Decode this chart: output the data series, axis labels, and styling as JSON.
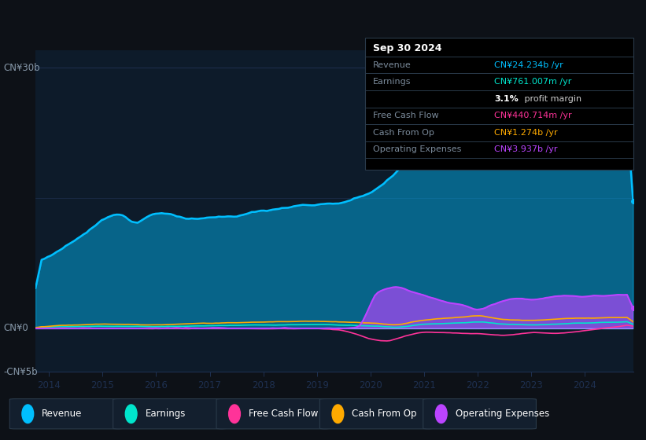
{
  "bg_color": "#0d1117",
  "plot_bg_color": "#0d1b2a",
  "ylim": [
    -5000000000.0,
    32000000000.0
  ],
  "colors": {
    "revenue": "#00bfff",
    "earnings": "#00e5cc",
    "free_cash_flow": "#ff3399",
    "cash_from_op": "#ffaa00",
    "operating_expenses": "#bb44ff"
  },
  "grid_color": "#1e3050",
  "zero_line_color": "#ffffff",
  "info_box_bg": "#000000",
  "info_box_border": "#2a3a4a",
  "info_box_title": "Sep 30 2024",
  "info_box_title_color": "#ffffff",
  "info_box_label_color": "#7a8a9a",
  "info_box_rows": [
    {
      "label": "Revenue",
      "value": "CN¥24.234b /yr",
      "color": "#00bfff"
    },
    {
      "label": "Earnings",
      "value": "CN¥761.007m /yr",
      "color": "#00e5cc"
    },
    {
      "label": "",
      "value_bold": "3.1%",
      "value_rest": " profit margin",
      "color": "#ffffff"
    },
    {
      "label": "Free Cash Flow",
      "value": "CN¥440.714m /yr",
      "color": "#ff3399"
    },
    {
      "label": "Cash From Op",
      "value": "CN¥1.274b /yr",
      "color": "#ffaa00"
    },
    {
      "label": "Operating Expenses",
      "value": "CN¥3.937b /yr",
      "color": "#bb44ff"
    }
  ],
  "legend_items": [
    {
      "label": "Revenue",
      "color": "#00bfff"
    },
    {
      "label": "Earnings",
      "color": "#00e5cc"
    },
    {
      "label": "Free Cash Flow",
      "color": "#ff3399"
    },
    {
      "label": "Cash From Op",
      "color": "#ffaa00"
    },
    {
      "label": "Operating Expenses",
      "color": "#bb44ff"
    }
  ]
}
